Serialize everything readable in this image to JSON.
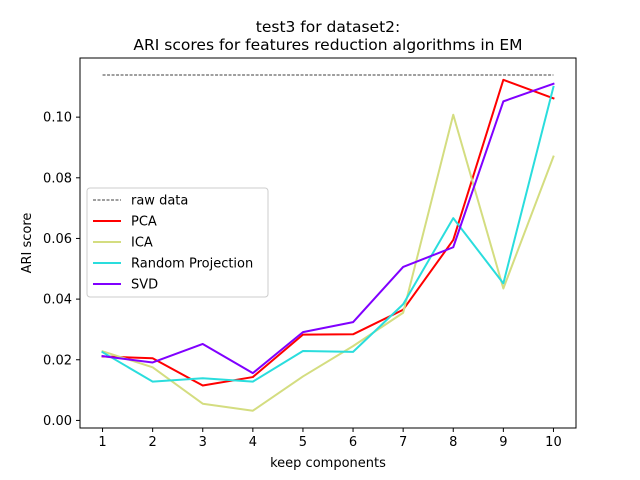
{
  "chart_data": {
    "type": "line",
    "title_line1": "test3 for dataset2:",
    "title_line2": "ARI scores for features reduction algorithms in EM",
    "xlabel": "keep components",
    "ylabel": "ARI score",
    "x": [
      1,
      2,
      3,
      4,
      5,
      6,
      7,
      8,
      9,
      10
    ],
    "xlim": [
      0.55,
      10.45
    ],
    "ylim": [
      -0.0025,
      0.1195
    ],
    "yticks": [
      0.0,
      0.02,
      0.04,
      0.06,
      0.08,
      0.1
    ],
    "ytick_labels": [
      "0.00",
      "0.02",
      "0.04",
      "0.06",
      "0.08",
      "0.10"
    ],
    "xtick_labels": [
      "1",
      "2",
      "3",
      "4",
      "5",
      "6",
      "7",
      "8",
      "9",
      "10"
    ],
    "raw_data": {
      "name": "raw data",
      "value": 0.1139,
      "color": "#000000",
      "style": "dashed"
    },
    "series": [
      {
        "name": "PCA",
        "color": "#ff0000",
        "values": [
          0.0211,
          0.0205,
          0.0115,
          0.0143,
          0.0283,
          0.0284,
          0.0365,
          0.0595,
          0.1123,
          0.1062
        ]
      },
      {
        "name": "ICA",
        "color": "#d4dd80",
        "values": [
          0.0228,
          0.0175,
          0.0055,
          0.0032,
          0.0145,
          0.0245,
          0.0355,
          0.1008,
          0.0435,
          0.087
        ]
      },
      {
        "name": "Random Projection",
        "color": "#2adddd",
        "values": [
          0.0225,
          0.0128,
          0.0139,
          0.0128,
          0.0229,
          0.0226,
          0.0383,
          0.0667,
          0.0452,
          0.11
        ]
      },
      {
        "name": "SVD",
        "color": "#8000ff",
        "values": [
          0.0212,
          0.0191,
          0.0252,
          0.0156,
          0.0291,
          0.0324,
          0.0506,
          0.0571,
          0.1052,
          0.111
        ]
      }
    ],
    "grid": false,
    "legend_position": "center-left"
  }
}
